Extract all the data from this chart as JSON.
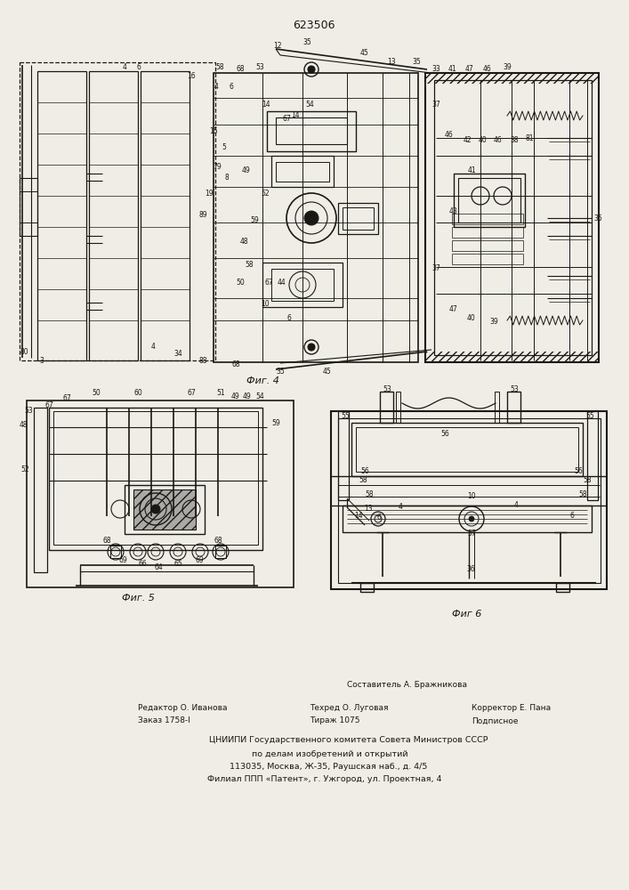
{
  "patent_number": "623506",
  "bg_color": "#f0ede6",
  "line_color": "#1a1814",
  "fig4_label": "Фиг. 4",
  "fig5_label": "Фиг. 5",
  "fig6_label": "Фиг 6",
  "footer": {
    "sostavitel": "Составитель А. Бражникова",
    "redaktor": "Редактор О. Иванова",
    "tehred": "Техред О. Луговая",
    "korrektor": "Корректор Е. Пана",
    "zakaz": "Заказ 1758-І",
    "tirazh": "Тираж 1075",
    "podpisnoe": "Подписное",
    "cniipи": "ЦНИИПИ Государственного комитета Совета Министров СССР",
    "po_delam": "по делам изобретений и открытий",
    "address": "113035, Москва, Ж-35, Раушская наб., д. 4/5",
    "filial": "Филиал ППП «Патент», г. Ужгород, ул. Проектная, 4"
  }
}
